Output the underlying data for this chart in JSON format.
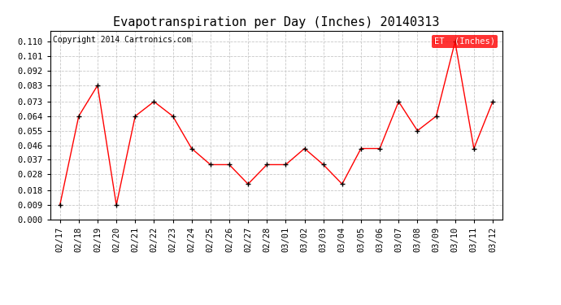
{
  "title": "Evapotranspiration per Day (Inches) 20140313",
  "copyright_text": "Copyright 2014 Cartronics.com",
  "legend_label": "ET  (Inches)",
  "dates": [
    "02/17",
    "02/18",
    "02/19",
    "02/20",
    "02/21",
    "02/22",
    "02/23",
    "02/24",
    "02/25",
    "02/26",
    "02/27",
    "02/28",
    "03/01",
    "03/02",
    "03/03",
    "03/04",
    "03/05",
    "03/06",
    "03/07",
    "03/08",
    "03/09",
    "03/10",
    "03/11",
    "03/12"
  ],
  "values": [
    0.009,
    0.064,
    0.083,
    0.009,
    0.064,
    0.073,
    0.064,
    0.044,
    0.034,
    0.034,
    0.022,
    0.034,
    0.034,
    0.044,
    0.034,
    0.022,
    0.044,
    0.044,
    0.073,
    0.055,
    0.064,
    0.11,
    0.044,
    0.073
  ],
  "yticks": [
    0.0,
    0.009,
    0.018,
    0.028,
    0.037,
    0.046,
    0.055,
    0.064,
    0.073,
    0.083,
    0.092,
    0.101,
    0.11
  ],
  "ylim": [
    0.0,
    0.117
  ],
  "line_color": "#ff0000",
  "marker_color": "#000000",
  "bg_color": "#ffffff",
  "grid_color": "#c8c8c8",
  "title_fontsize": 11,
  "tick_fontsize": 7.5,
  "copyright_fontsize": 7,
  "legend_bg_color": "#ff0000",
  "legend_text_color": "#ffffff",
  "legend_fontsize": 7.5
}
